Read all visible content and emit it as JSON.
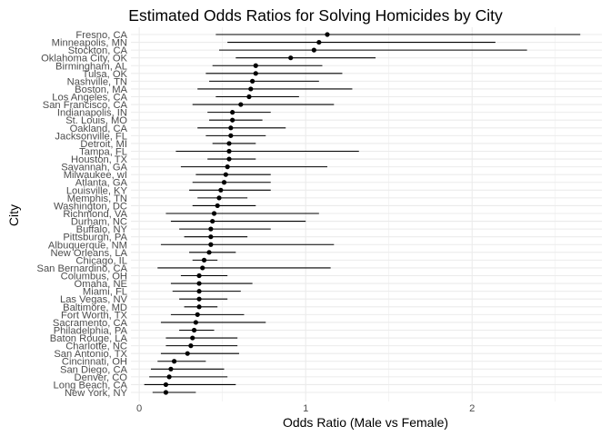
{
  "chart_data": {
    "type": "scatter",
    "subtype": "errorbar",
    "orientation": "horizontal",
    "title": "Estimated Odds Ratios for Solving Homicides by City",
    "xlabel": "Odds Ratio (Male vs Female)",
    "ylabel": "City",
    "xlim": [
      -0.05,
      2.78
    ],
    "xticks": [
      0,
      1,
      2
    ],
    "grid": true,
    "legend": "none",
    "colors": {
      "point": "#000000",
      "errorbar": "#000000",
      "grid": "#ebebeb"
    },
    "series": [
      {
        "city": "Fresno, CA",
        "or": 1.13,
        "lo": 0.46,
        "hi": 2.65
      },
      {
        "city": "Minneapolis, MN",
        "or": 1.08,
        "lo": 0.53,
        "hi": 2.14
      },
      {
        "city": "Stockton, CA",
        "or": 1.05,
        "lo": 0.48,
        "hi": 2.33
      },
      {
        "city": "Oklahoma City, OK",
        "or": 0.91,
        "lo": 0.58,
        "hi": 1.42
      },
      {
        "city": "Birmingham, AL",
        "or": 0.7,
        "lo": 0.44,
        "hi": 1.1
      },
      {
        "city": "Tulsa, OK",
        "or": 0.7,
        "lo": 0.4,
        "hi": 1.22
      },
      {
        "city": "Nashville, TN",
        "or": 0.68,
        "lo": 0.42,
        "hi": 1.08
      },
      {
        "city": "Boston, MA",
        "or": 0.67,
        "lo": 0.35,
        "hi": 1.28
      },
      {
        "city": "Los Angeles, CA",
        "or": 0.66,
        "lo": 0.46,
        "hi": 0.96
      },
      {
        "city": "San Francisco, CA",
        "or": 0.61,
        "lo": 0.32,
        "hi": 1.17
      },
      {
        "city": "Indianapolis, IN",
        "or": 0.56,
        "lo": 0.41,
        "hi": 0.79
      },
      {
        "city": "St. Louis, MO",
        "or": 0.56,
        "lo": 0.42,
        "hi": 0.74
      },
      {
        "city": "Oakland, CA",
        "or": 0.55,
        "lo": 0.35,
        "hi": 0.88
      },
      {
        "city": "Jacksonville, FL",
        "or": 0.55,
        "lo": 0.4,
        "hi": 0.76
      },
      {
        "city": "Detroit, MI",
        "or": 0.54,
        "lo": 0.44,
        "hi": 0.7
      },
      {
        "city": "Tampa, FL",
        "or": 0.54,
        "lo": 0.22,
        "hi": 1.32
      },
      {
        "city": "Houston, TX",
        "or": 0.54,
        "lo": 0.41,
        "hi": 0.7
      },
      {
        "city": "Savannah, GA",
        "or": 0.53,
        "lo": 0.25,
        "hi": 1.13
      },
      {
        "city": "Milwaukee, wI",
        "or": 0.52,
        "lo": 0.34,
        "hi": 0.79
      },
      {
        "city": "Atlanta, GA",
        "or": 0.51,
        "lo": 0.32,
        "hi": 0.79
      },
      {
        "city": "Louisville, KY",
        "or": 0.49,
        "lo": 0.3,
        "hi": 0.79
      },
      {
        "city": "Memphis, TN",
        "or": 0.48,
        "lo": 0.35,
        "hi": 0.65
      },
      {
        "city": "Washington, DC",
        "or": 0.47,
        "lo": 0.32,
        "hi": 0.7
      },
      {
        "city": "Richmond, VA",
        "or": 0.45,
        "lo": 0.16,
        "hi": 1.08
      },
      {
        "city": "Durham, NC",
        "or": 0.44,
        "lo": 0.19,
        "hi": 1.0
      },
      {
        "city": "Buffalo, NY",
        "or": 0.43,
        "lo": 0.24,
        "hi": 0.79
      },
      {
        "city": "Pittsburgh, PA",
        "or": 0.43,
        "lo": 0.27,
        "hi": 0.65
      },
      {
        "city": "Albuquerque, NM",
        "or": 0.43,
        "lo": 0.13,
        "hi": 1.17
      },
      {
        "city": "New Orleans, LA",
        "or": 0.42,
        "lo": 0.3,
        "hi": 0.58
      },
      {
        "city": "Chicago, IL",
        "or": 0.39,
        "lo": 0.32,
        "hi": 0.47
      },
      {
        "city": "San Bernardino, CA",
        "or": 0.38,
        "lo": 0.11,
        "hi": 1.15
      },
      {
        "city": "Columbus, OH",
        "or": 0.36,
        "lo": 0.25,
        "hi": 0.53
      },
      {
        "city": "Omaha, NE",
        "or": 0.36,
        "lo": 0.19,
        "hi": 0.68
      },
      {
        "city": "Miami, FL",
        "or": 0.36,
        "lo": 0.2,
        "hi": 0.61
      },
      {
        "city": "Las Vegas, NV",
        "or": 0.36,
        "lo": 0.24,
        "hi": 0.53
      },
      {
        "city": "Baltimore, MD",
        "or": 0.36,
        "lo": 0.27,
        "hi": 0.47
      },
      {
        "city": "Fort Worth, TX",
        "or": 0.35,
        "lo": 0.19,
        "hi": 0.63
      },
      {
        "city": "Sacramento, CA",
        "or": 0.34,
        "lo": 0.13,
        "hi": 0.76
      },
      {
        "city": "Philadelphia, PA",
        "or": 0.33,
        "lo": 0.24,
        "hi": 0.45
      },
      {
        "city": "Baton Rouge, LA",
        "or": 0.32,
        "lo": 0.16,
        "hi": 0.59
      },
      {
        "city": "Charlotte, NC",
        "or": 0.31,
        "lo": 0.16,
        "hi": 0.59
      },
      {
        "city": "San Antonio, TX",
        "or": 0.29,
        "lo": 0.13,
        "hi": 0.6
      },
      {
        "city": "Cincinnati, OH",
        "or": 0.21,
        "lo": 0.11,
        "hi": 0.4
      },
      {
        "city": "San Diego, CA",
        "or": 0.19,
        "lo": 0.07,
        "hi": 0.51
      },
      {
        "city": "Denver, CO",
        "or": 0.18,
        "lo": 0.06,
        "hi": 0.53
      },
      {
        "city": "Long Beach, CA",
        "or": 0.16,
        "lo": 0.03,
        "hi": 0.58
      },
      {
        "city": "New York, NY",
        "or": 0.16,
        "lo": 0.08,
        "hi": 0.34
      }
    ]
  }
}
